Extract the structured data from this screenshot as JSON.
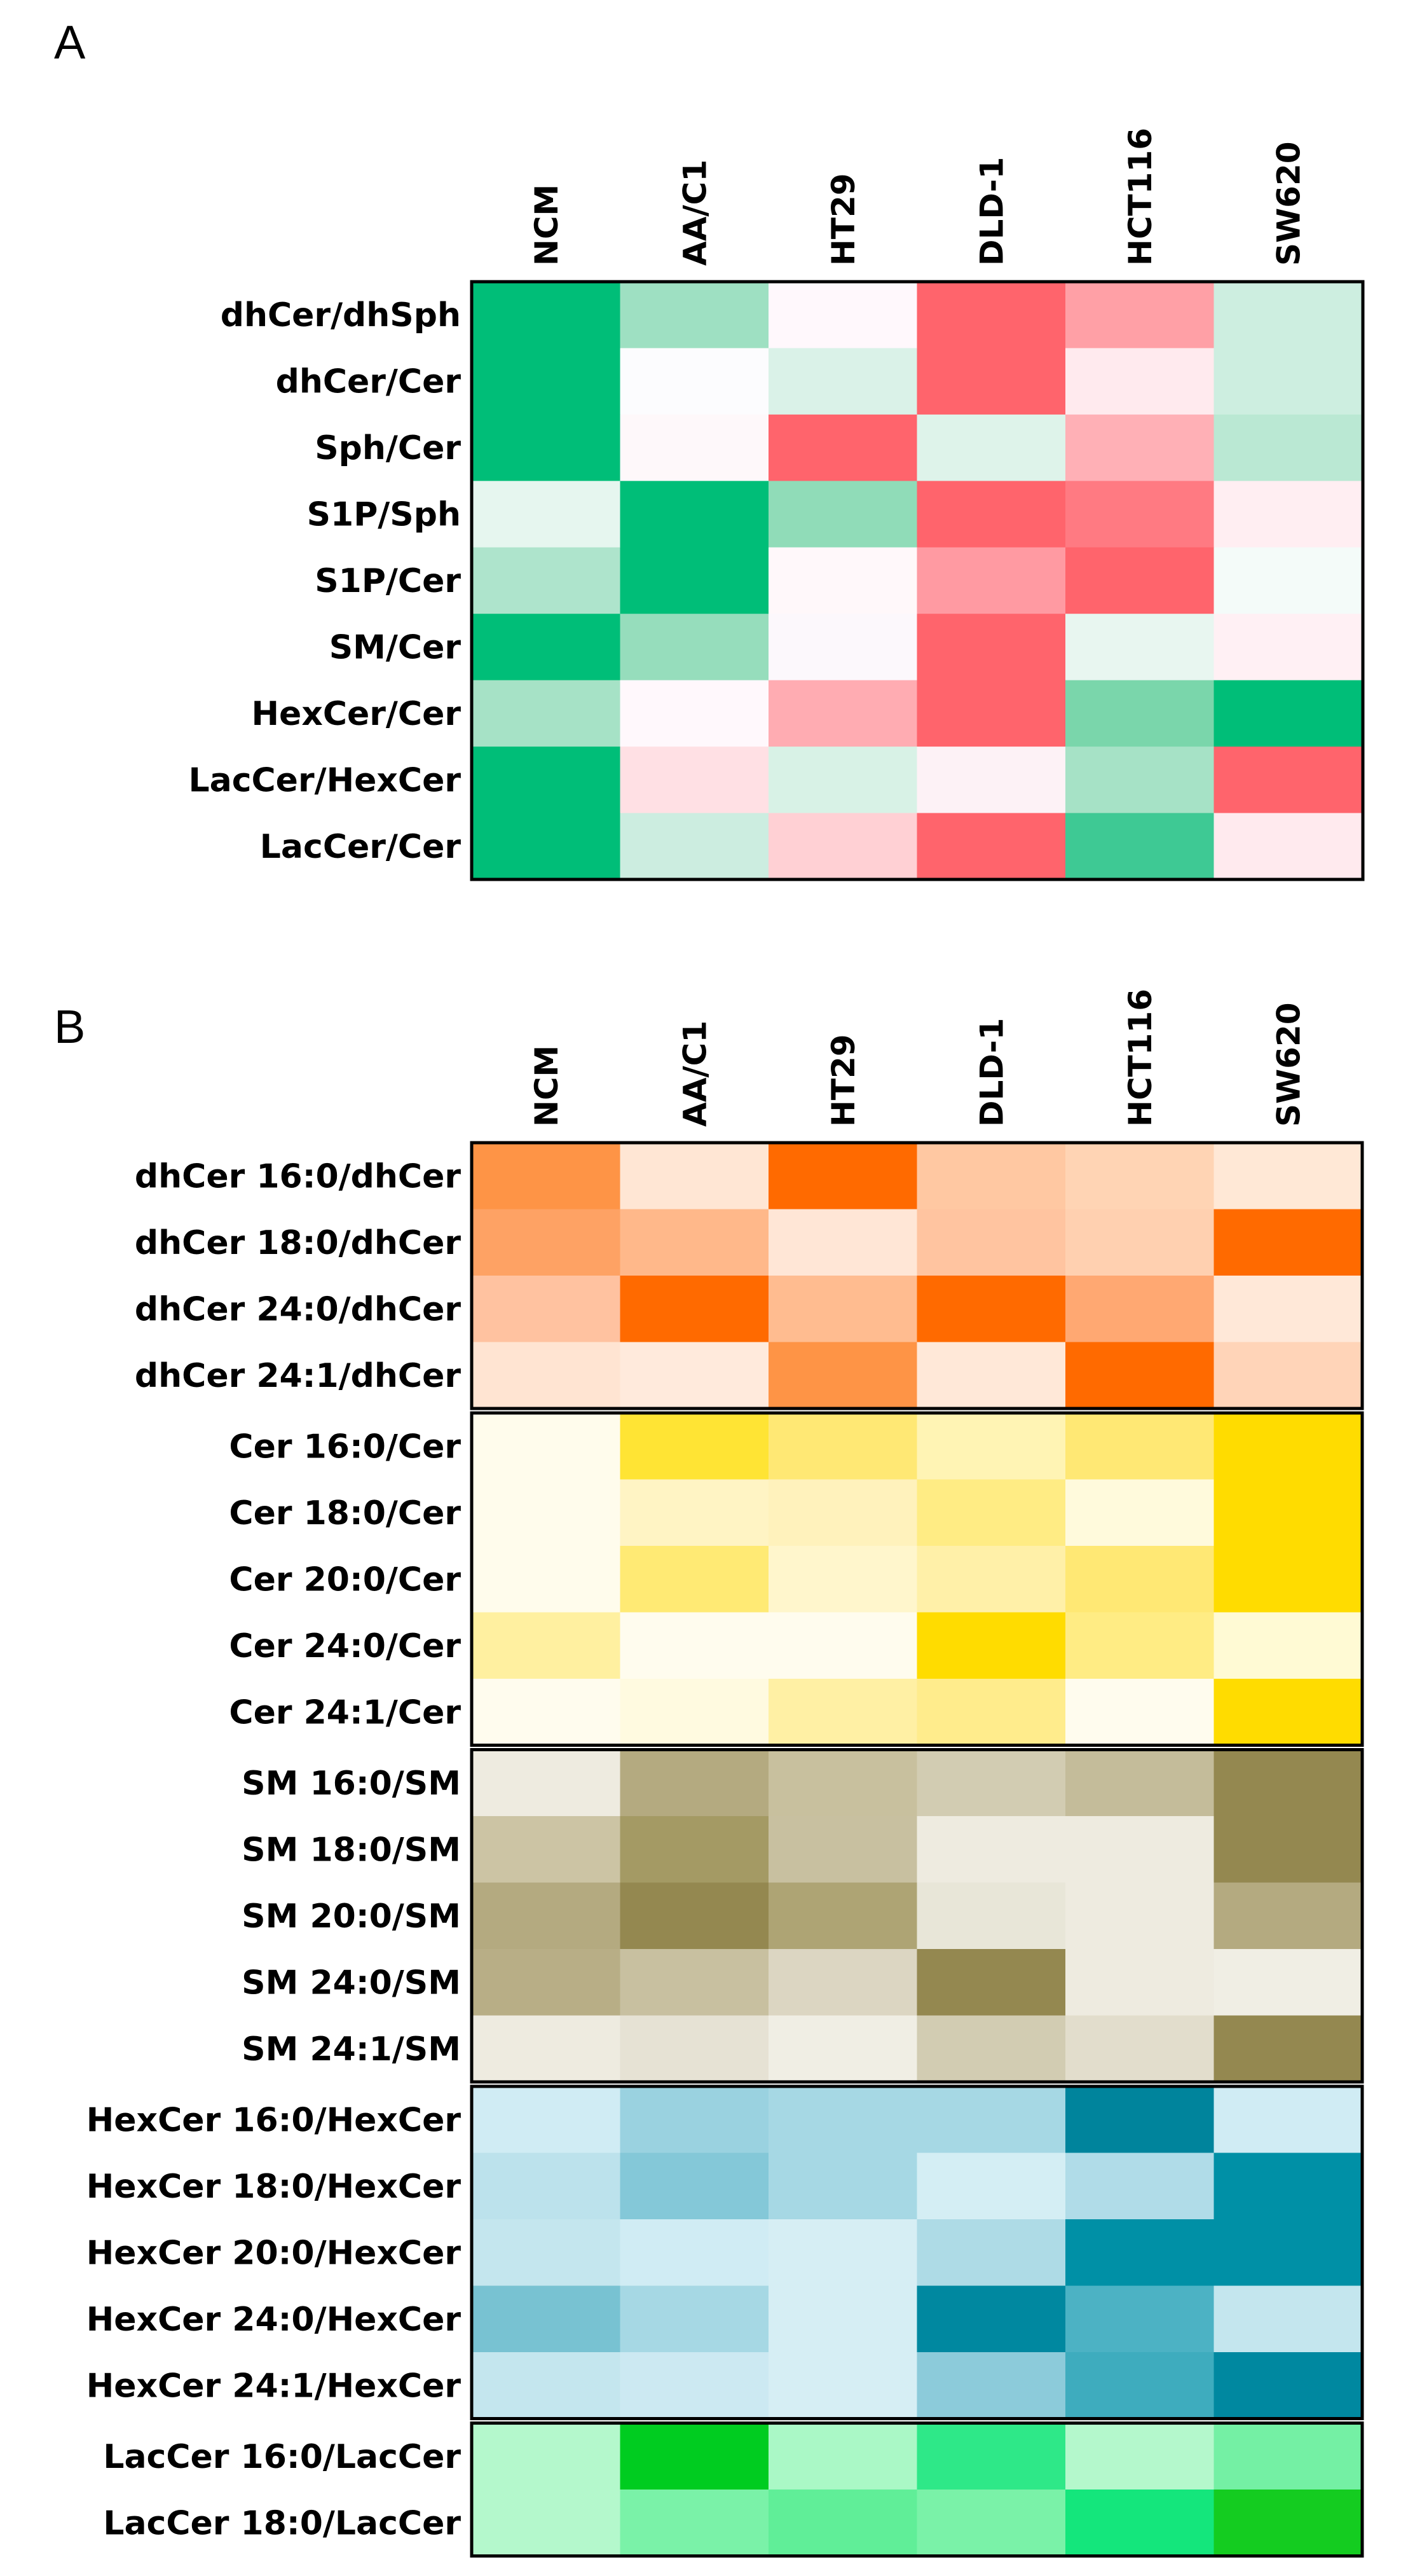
{
  "chart_data": [
    {
      "type": "heatmap",
      "panel_label": "A",
      "columns": [
        "NCM",
        "AA/C1",
        "HT29",
        "DLD-1",
        "HCT116",
        "SW620"
      ],
      "rows": [
        "dhCer/dhSph",
        "dhCer/Cer",
        "Sph/Cer",
        "S1P/Sph",
        "S1P/Cer",
        "SM/Cer",
        "HexCer/Cer",
        "LacCer/HexCer",
        "LacCer/Cer"
      ],
      "colors": [
        [
          "#00be78",
          "#9ee0c2",
          "#fff8fc",
          "#ff646c",
          "#ffa0a6",
          "#cdeee0"
        ],
        [
          "#00be78",
          "#fcfcfe",
          "#daf2e8",
          "#ff646c",
          "#ffeaee",
          "#cdeee0"
        ],
        [
          "#00be78",
          "#fef8fa",
          "#ff646c",
          "#def3ea",
          "#ffb0b6",
          "#bae8d3"
        ],
        [
          "#e6f6ef",
          "#00be78",
          "#90dcb8",
          "#ff646c",
          "#ff7a82",
          "#ffeef2"
        ],
        [
          "#aee4cc",
          "#00be78",
          "#fff8fa",
          "#ff9aa2",
          "#ff646c",
          "#f4fbf9"
        ],
        [
          "#00be78",
          "#96ddbc",
          "#fcf8fc",
          "#ff646c",
          "#e8f6f0",
          "#fff0f4"
        ],
        [
          "#a6e2c6",
          "#fff8fc",
          "#ffacb2",
          "#ff646c",
          "#7ad6ab",
          "#00be78"
        ],
        [
          "#00be78",
          "#ffe0e4",
          "#d8f2e6",
          "#fdf2f6",
          "#a6e2c6",
          "#ff646c"
        ],
        [
          "#00be78",
          "#ccede0",
          "#ffd0d4",
          "#ff646c",
          "#3ec994",
          "#ffeaee"
        ]
      ]
    },
    {
      "type": "heatmap",
      "panel_label": "B",
      "columns": [
        "NCM",
        "AA/C1",
        "HT29",
        "DLD-1",
        "HCT116",
        "SW620"
      ],
      "groups": [
        {
          "name": "dhCer",
          "rows": [
            "dhCer 16:0/dhCer",
            "dhCer 18:0/dhCer",
            "dhCer 24:0/dhCer",
            "dhCer 24:1/dhCer"
          ],
          "colors": [
            [
              "#fe9446",
              "#ffe6d4",
              "#ff6a00",
              "#ffc8a2",
              "#ffd4b4",
              "#ffe8d6"
            ],
            [
              "#fea264",
              "#ffb88a",
              "#ffe6d6",
              "#ffc4a0",
              "#ffd0b0",
              "#ff6a00"
            ],
            [
              "#ffc2a0",
              "#ff6a00",
              "#ffbc90",
              "#ff6a00",
              "#ffa872",
              "#ffe8d8"
            ],
            [
              "#ffe4d2",
              "#ffeadc",
              "#fe9446",
              "#ffe8d8",
              "#ff6a00",
              "#ffd4b8"
            ]
          ]
        },
        {
          "name": "Cer",
          "rows": [
            "Cer 16:0/Cer",
            "Cer 18:0/Cer",
            "Cer 20:0/Cer",
            "Cer 24:0/Cer",
            "Cer 24:1/Cer"
          ],
          "colors": [
            [
              "#fffcec",
              "#ffe434",
              "#ffe874",
              "#fff4b4",
              "#ffe874",
              "#ffdc00"
            ],
            [
              "#fffcec",
              "#fff4c4",
              "#fff2bc",
              "#ffec84",
              "#fffadc",
              "#ffdc00"
            ],
            [
              "#fffcec",
              "#ffea74",
              "#fff6cc",
              "#fff0a8",
              "#ffe874",
              "#ffdc00"
            ],
            [
              "#fff0a0",
              "#fffcee",
              "#fffcee",
              "#ffdc00",
              "#ffec84",
              "#fffad4"
            ],
            [
              "#fffcee",
              "#fffae0",
              "#fff0a4",
              "#ffec8c",
              "#fffcee",
              "#ffdc00"
            ]
          ]
        },
        {
          "name": "SM",
          "rows": [
            "SM 16:0/SM",
            "SM 18:0/SM",
            "SM 20:0/SM",
            "SM 24:0/SM",
            "SM 24:1/SM"
          ],
          "colors": [
            [
              "#eeebe0",
              "#b4aa80",
              "#c8c09e",
              "#d2ccb2",
              "#c4bc9a",
              "#948850"
            ],
            [
              "#ccc4a4",
              "#a49a64",
              "#c8c0a0",
              "#eeebe0",
              "#eeebe0",
              "#948850"
            ],
            [
              "#b4aa80",
              "#948850",
              "#aea474",
              "#e8e6d8",
              "#eeebe0",
              "#b4aa80"
            ],
            [
              "#b8ae86",
              "#c8c0a0",
              "#dcd6c2",
              "#948850",
              "#eeebe0",
              "#f0eee4"
            ],
            [
              "#eeebe0",
              "#e6e2d4",
              "#f0eee4",
              "#d2ccb2",
              "#e2ddcc",
              "#948850"
            ]
          ]
        },
        {
          "name": "HexCer",
          "rows": [
            "HexCer 16:0/HexCer",
            "HexCer 18:0/HexCer",
            "HexCer 20:0/HexCer",
            "HexCer 24:0/HexCer",
            "HexCer 24:1/HexCer"
          ],
          "colors": [
            [
              "#d0ecf4",
              "#9ad2e0",
              "#a6d8e4",
              "#a6d8e4",
              "#00849c",
              "#d0ecf4"
            ],
            [
              "#bce2ec",
              "#84c8d8",
              "#a6d8e4",
              "#d4eef4",
              "#b0dce8",
              "#0090a6"
            ],
            [
              "#c4e6ee",
              "#d0ecf4",
              "#d6eef4",
              "#aedbe6",
              "#0090a6",
              "#0090a6"
            ],
            [
              "#78c2d2",
              "#a6d8e4",
              "#d6eef4",
              "#0088a0",
              "#4cb2c4",
              "#c4e6ee"
            ],
            [
              "#c4e6ee",
              "#cce9f2",
              "#d6eef4",
              "#8ccbda",
              "#3eacbe",
              "#0088a0"
            ]
          ]
        },
        {
          "name": "LacCer",
          "rows": [
            "LacCer 16:0/LacCer",
            "LacCer 18:0/LacCer"
          ],
          "colors": [
            [
              "#b4f8cc",
              "#00cc20",
              "#aaf8c6",
              "#2ee888",
              "#b4f8cc",
              "#74f0a4"
            ],
            [
              "#b4f8cc",
              "#7af2a8",
              "#60ee98",
              "#7af2a8",
              "#14e67c",
              "#14cc20"
            ]
          ]
        }
      ]
    }
  ]
}
